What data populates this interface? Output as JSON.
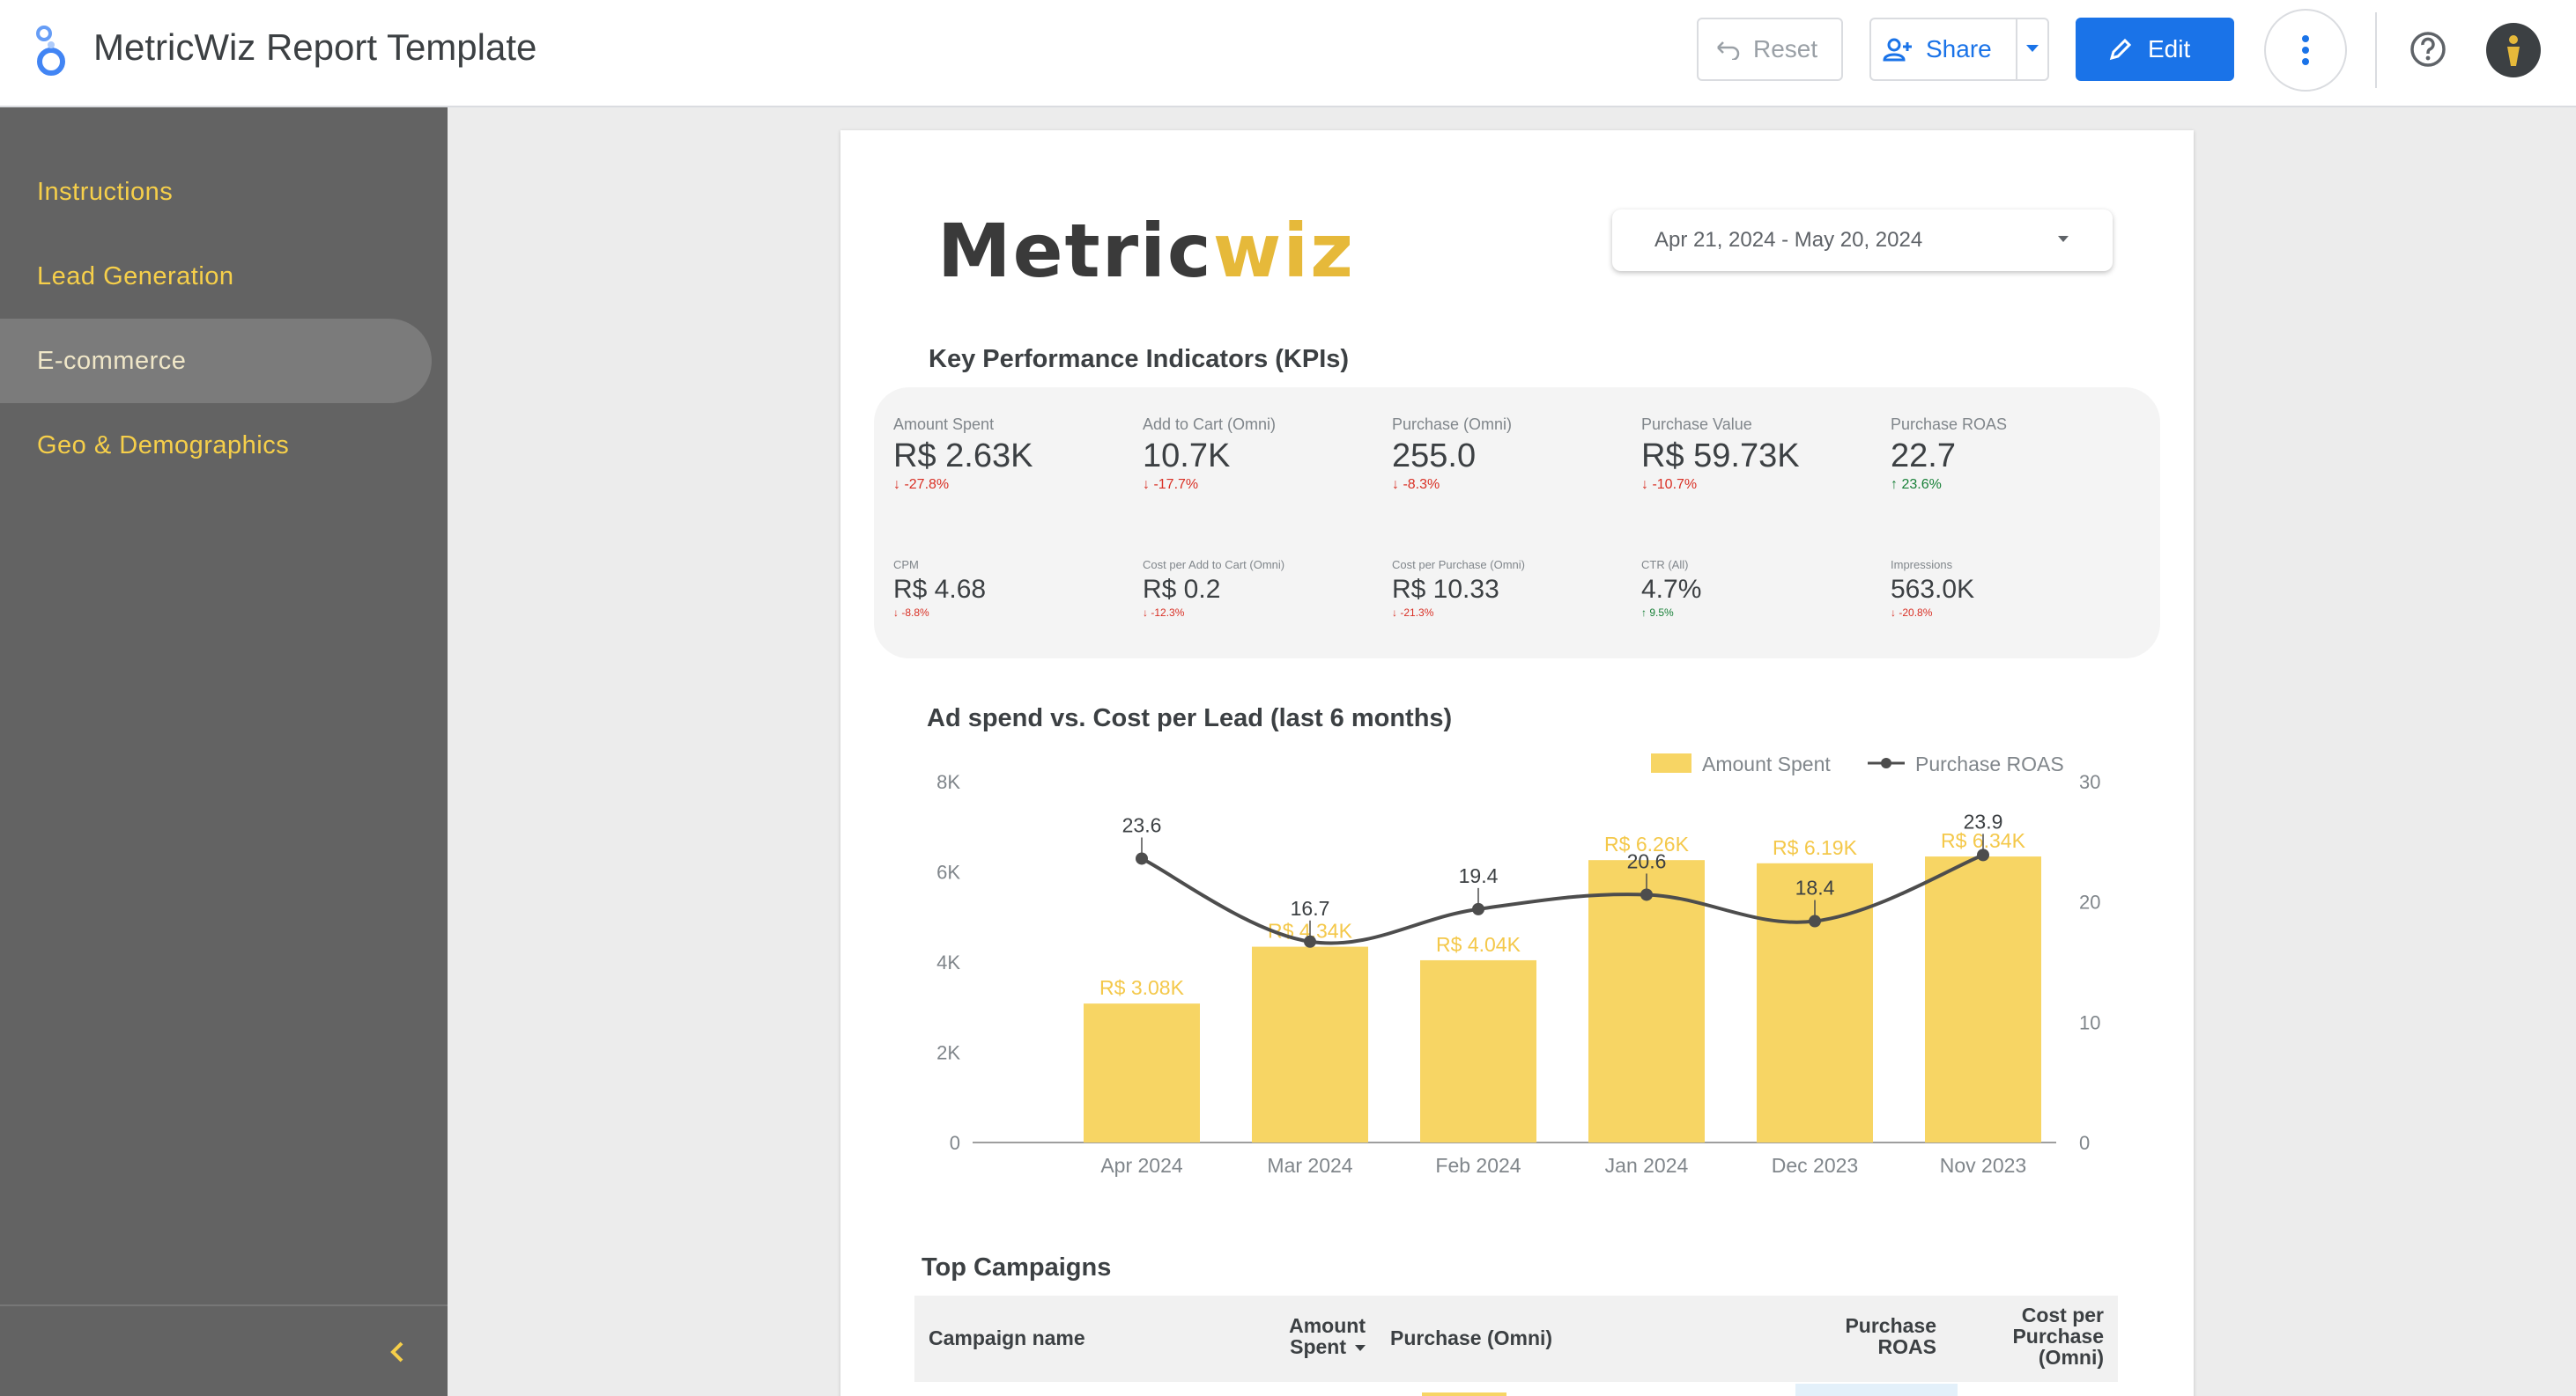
{
  "app": {
    "title": "MetricWiz Report Template"
  },
  "toolbar": {
    "reset_label": "Reset",
    "share_label": "Share",
    "edit_label": "Edit"
  },
  "sidebar": {
    "items": [
      {
        "label": "Instructions"
      },
      {
        "label": "Lead Generation"
      },
      {
        "label": "E-commerce",
        "active": true
      },
      {
        "label": "Geo & Demographics"
      }
    ]
  },
  "report": {
    "brand_part1": "Metric",
    "brand_part2": "wiz",
    "date_range": "Apr 21, 2024 - May 20, 2024",
    "kpi_title": "Key Performance Indicators (KPIs)",
    "kpis_primary": [
      {
        "label": "Amount Spent",
        "value": "R$ 2.63K",
        "change": "-27.8%",
        "direction": "down"
      },
      {
        "label": "Add to Cart (Omni)",
        "value": "10.7K",
        "change": "-17.7%",
        "direction": "down"
      },
      {
        "label": "Purchase (Omni)",
        "value": "255.0",
        "change": "-8.3%",
        "direction": "down"
      },
      {
        "label": "Purchase Value",
        "value": "R$ 59.73K",
        "change": "-10.7%",
        "direction": "down"
      },
      {
        "label": "Purchase ROAS",
        "value": "22.7",
        "change": "23.6%",
        "direction": "up"
      }
    ],
    "kpis_secondary": [
      {
        "label": "CPM",
        "value": "R$ 4.68",
        "change": "-8.8%",
        "direction": "down"
      },
      {
        "label": "Cost per Add to Cart (Omni)",
        "value": "R$ 0.2",
        "change": "-12.3%",
        "direction": "down"
      },
      {
        "label": "Cost per Purchase (Omni)",
        "value": "R$ 10.33",
        "change": "-21.3%",
        "direction": "down"
      },
      {
        "label": "CTR (All)",
        "value": "4.7%",
        "change": "9.5%",
        "direction": "up"
      },
      {
        "label": "Impressions",
        "value": "563.0K",
        "change": "-20.8%",
        "direction": "down"
      }
    ],
    "chart_title": "Ad spend vs. Cost per Lead (last 6 months)",
    "campaigns_title": "Top Campaigns",
    "table_headers": {
      "campaign_name": "Campaign name",
      "amount_spent_line1": "Amount",
      "amount_spent_line2": "Spent",
      "purchase_omni": "Purchase (Omni)",
      "purchase_roas_line1": "Purchase",
      "purchase_roas_line2": "ROAS",
      "cost_per_purchase_line1": "Cost per",
      "cost_per_purchase_line2": "Purchase",
      "cost_per_purchase_line3": "(Omni)"
    }
  },
  "colors": {
    "accent": "#1a73e8",
    "bar": "#f7d564",
    "bar_label": "#f4c84a",
    "line": "#4d4d4d",
    "negative": "#d93025",
    "positive": "#188038"
  },
  "chart_data": {
    "type": "bar",
    "categories": [
      "Apr 2024",
      "Mar 2024",
      "Feb 2024",
      "Jan 2024",
      "Dec 2023",
      "Nov 2023"
    ],
    "series": [
      {
        "name": "Amount Spent",
        "type": "bar",
        "axis": "left",
        "values": [
          3080,
          4340,
          4040,
          6260,
          6190,
          6340
        ],
        "labels": [
          "R$ 3.08K",
          "R$ 4.34K",
          "R$ 4.04K",
          "R$ 6.26K",
          "R$ 6.19K",
          "R$ 6.34K"
        ]
      },
      {
        "name": "Purchase ROAS",
        "type": "line",
        "axis": "right",
        "values": [
          23.6,
          16.7,
          19.4,
          20.6,
          18.4,
          23.9
        ],
        "labels": [
          "23.6",
          "16.7",
          "19.4",
          "20.6",
          "18.4",
          "23.9"
        ]
      }
    ],
    "y_left": {
      "ticks": [
        "0",
        "2K",
        "4K",
        "6K",
        "8K"
      ],
      "range": [
        0,
        8000
      ]
    },
    "y_right": {
      "ticks": [
        "0",
        "10",
        "20",
        "30"
      ],
      "range": [
        0,
        30
      ]
    },
    "legend_position": "top-right",
    "grid": false
  }
}
